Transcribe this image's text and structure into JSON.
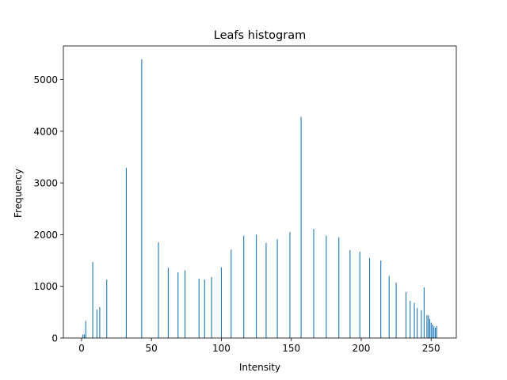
{
  "chart_data": {
    "type": "bar",
    "title": "Leafs histogram",
    "xlabel": "Intensity",
    "ylabel": "Frequency",
    "xlim": [
      -13,
      268
    ],
    "ylim": [
      0,
      5650
    ],
    "grid": false,
    "legend": "none",
    "bar_color": "#1f77b4",
    "xticks": [
      0,
      50,
      100,
      150,
      200,
      250
    ],
    "yticks": [
      0,
      1000,
      2000,
      3000,
      4000,
      5000
    ],
    "series": [
      {
        "x": [
          1,
          2,
          3,
          8,
          11,
          13,
          18,
          32,
          43,
          55,
          62,
          69,
          74,
          84,
          88,
          93,
          100,
          107,
          116,
          125,
          132,
          140,
          149,
          157,
          166,
          175,
          184,
          192,
          199,
          206,
          214,
          220,
          225,
          232,
          235,
          238,
          240,
          243,
          245,
          247,
          248,
          249,
          250,
          251,
          252,
          253,
          254
        ],
        "values": [
          70,
          70,
          330,
          1470,
          550,
          600,
          1130,
          3290,
          5390,
          1850,
          1360,
          1270,
          1310,
          1150,
          1130,
          1180,
          1370,
          1710,
          1980,
          2000,
          1840,
          1910,
          2050,
          4280,
          2110,
          1980,
          1950,
          1700,
          1670,
          1550,
          1500,
          1200,
          1070,
          890,
          720,
          680,
          580,
          540,
          980,
          440,
          440,
          370,
          300,
          260,
          220,
          200,
          230
        ]
      }
    ]
  }
}
